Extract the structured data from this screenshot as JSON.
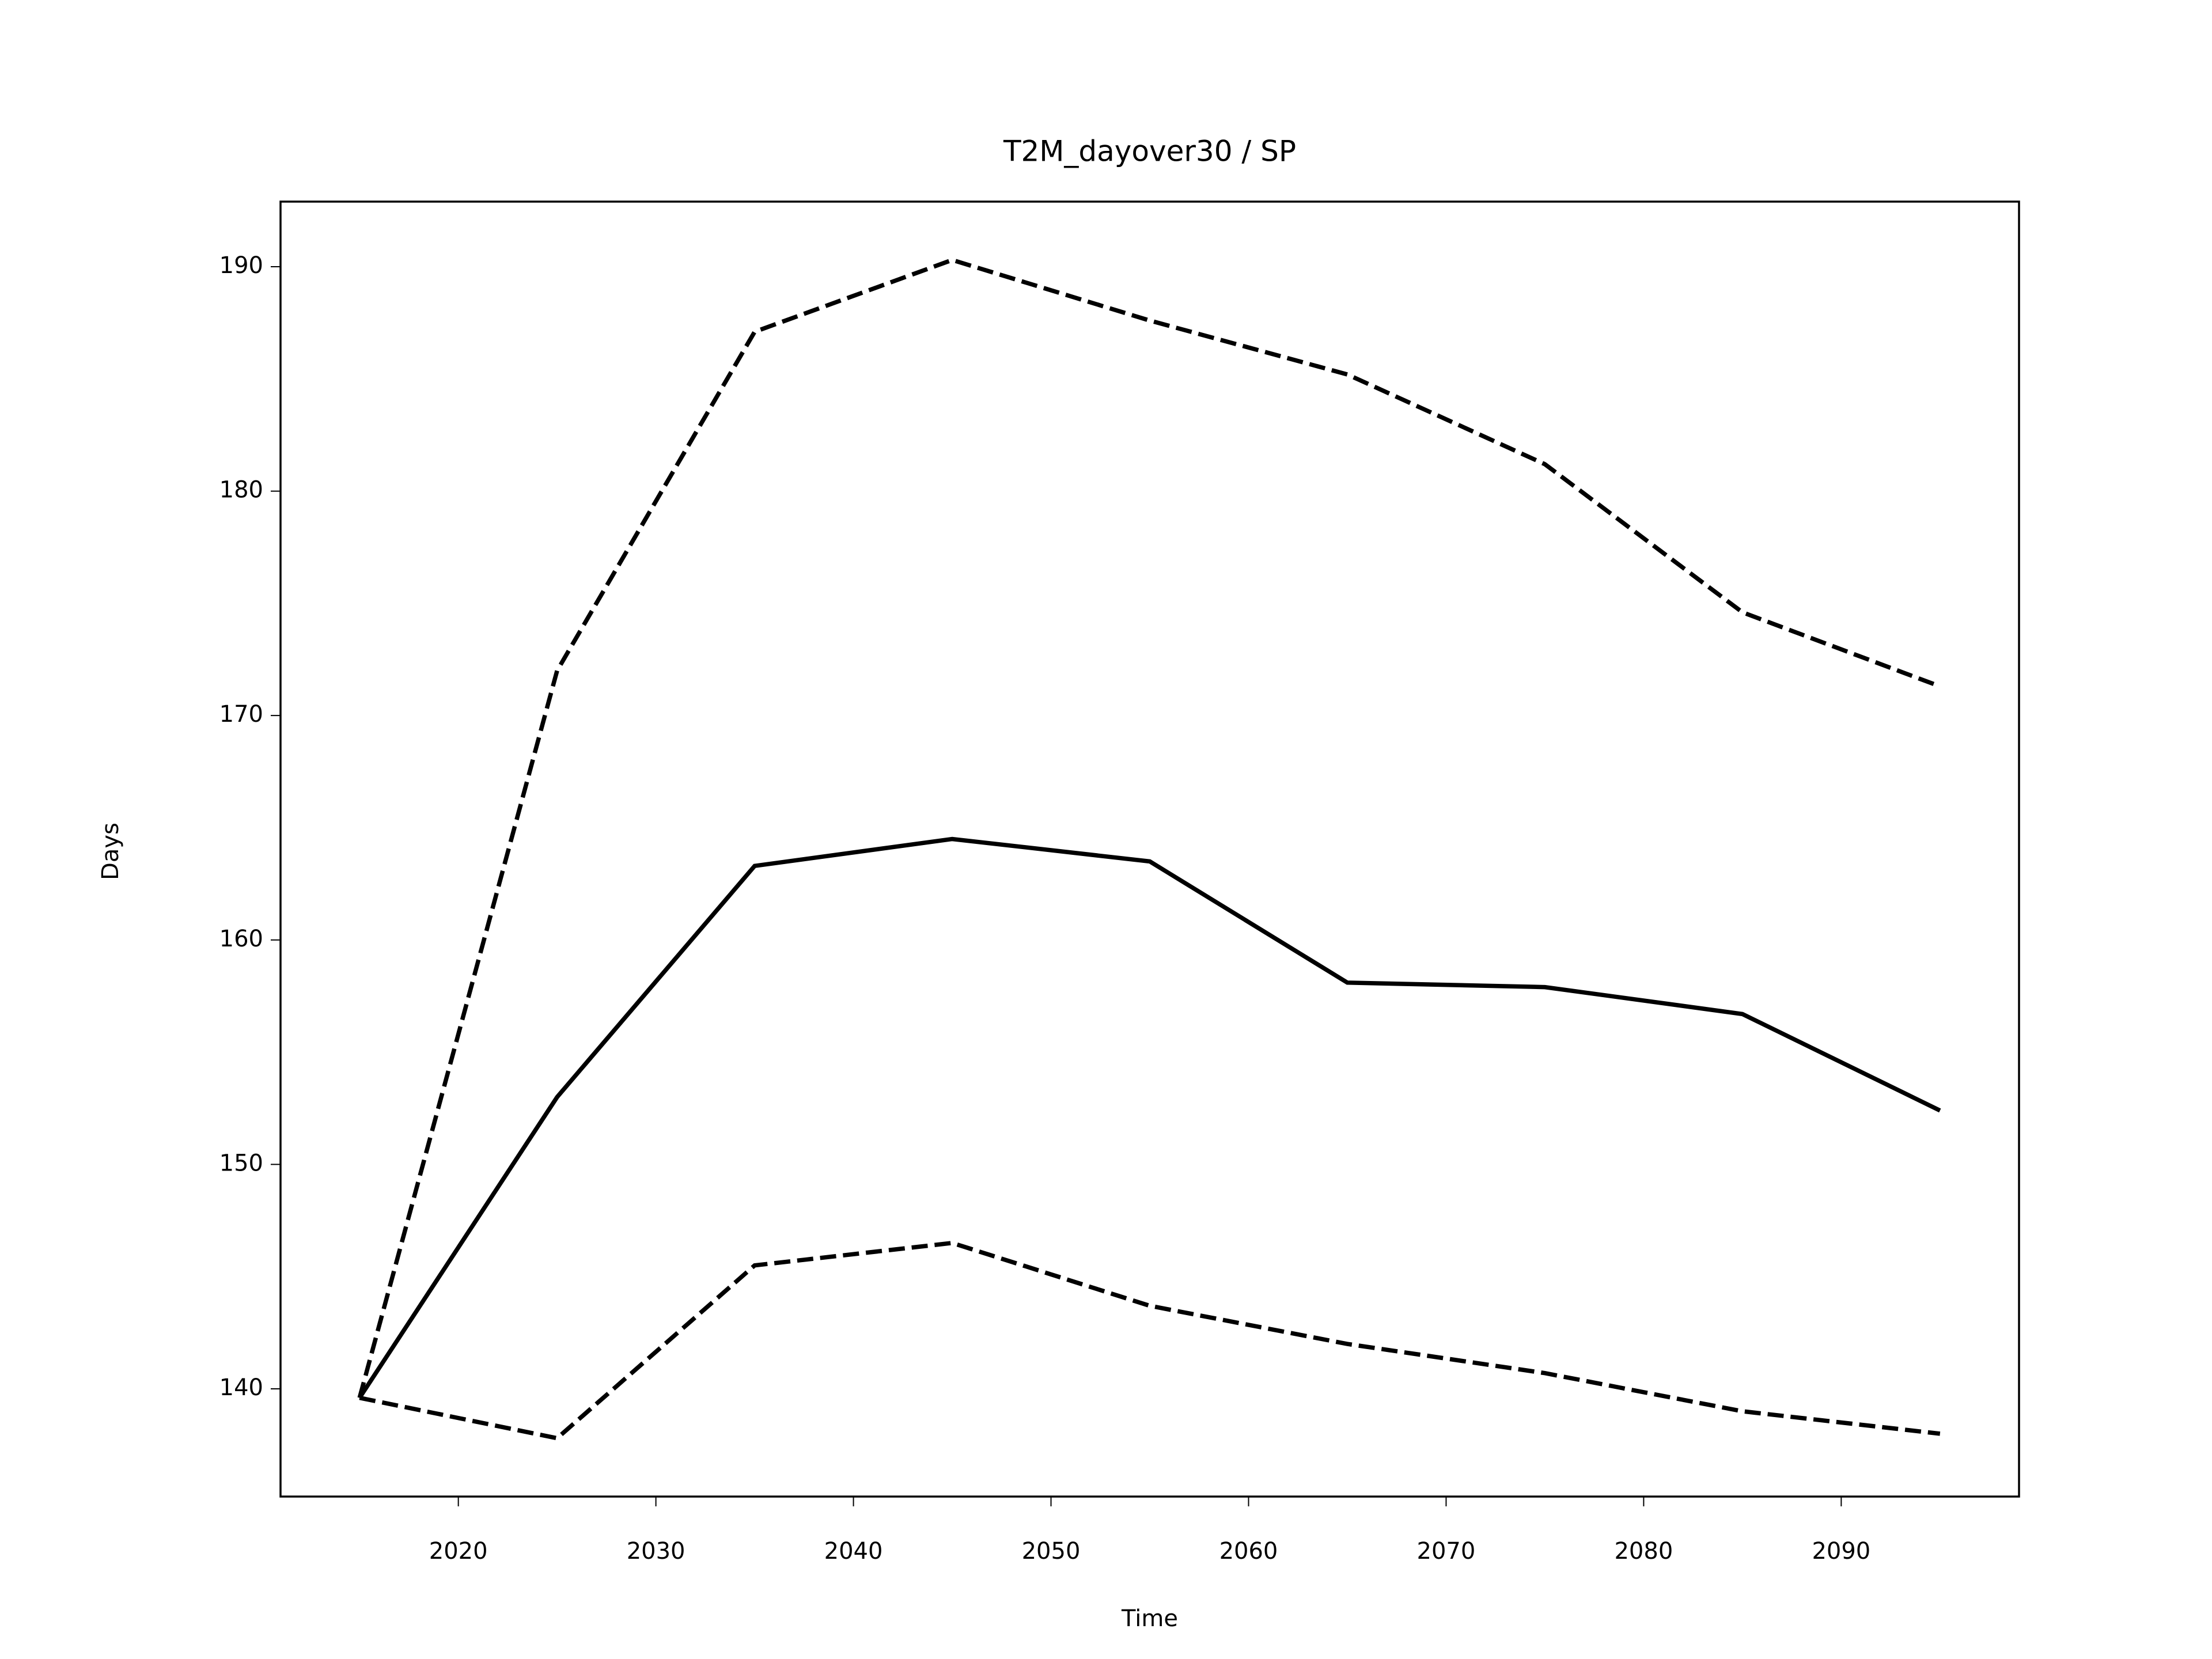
{
  "chart_data": {
    "type": "line",
    "title": "T2M_dayover30 / SP",
    "xlabel": "Time",
    "ylabel": "Days",
    "x": [
      2015,
      2025,
      2035,
      2045,
      2055,
      2065,
      2075,
      2085,
      2095
    ],
    "series": [
      {
        "color": "#000000",
        "style": "solid",
        "values": [
          139.6,
          153.0,
          163.3,
          164.5,
          163.5,
          158.1,
          157.9,
          156.7,
          152.4
        ]
      },
      {
        "color": "#000000",
        "style": "dashed",
        "values": [
          139.6,
          172.0,
          187.1,
          190.3,
          187.6,
          185.2,
          181.2,
          174.6,
          171.3
        ]
      },
      {
        "color": "#000000",
        "style": "dashed",
        "values": [
          139.6,
          137.8,
          145.5,
          146.5,
          143.7,
          142.0,
          140.7,
          139.0,
          138.0
        ]
      }
    ],
    "xlim": [
      2011,
      2099
    ],
    "xticks": [
      2020,
      2030,
      2040,
      2050,
      2060,
      2070,
      2080,
      2090
    ],
    "ylim": [
      135.2,
      192.9
    ],
    "yticks": [
      140,
      150,
      160,
      170,
      180,
      190
    ],
    "grid": false
  }
}
